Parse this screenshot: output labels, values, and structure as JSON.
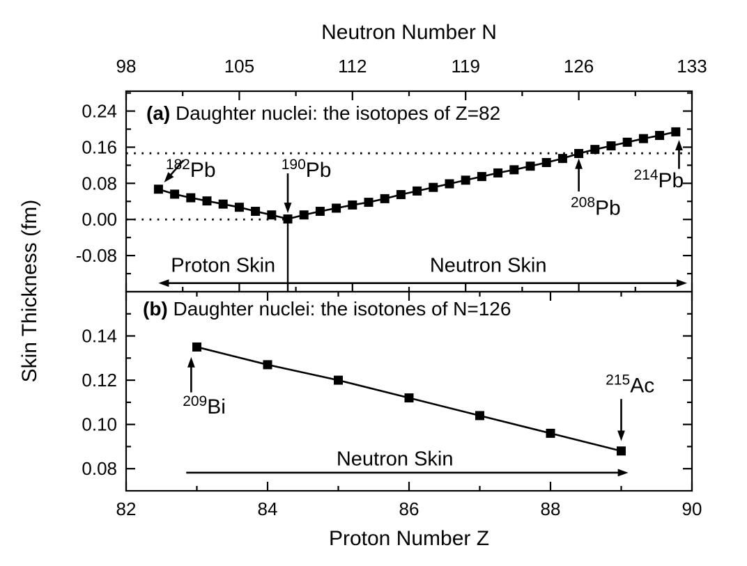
{
  "figure": {
    "background": "#ffffff",
    "foreground": "#000000",
    "y_axis_title": "Skin Thickness (fm)",
    "top_axis_title": "Neutron Number N",
    "bottom_axis_title": "Proton Number Z"
  },
  "chart_data": [
    {
      "type": "line",
      "id": "a",
      "title_label": "(a)",
      "title_text": "Daughter nuclei: the isotopes of Z=82",
      "xlabel": "Neutron Number N",
      "ylabel": "Skin Thickness (fm)",
      "x_axis": "top",
      "legend": "none",
      "grid": false,
      "marker": "square",
      "xlim": [
        98,
        133
      ],
      "ylim": [
        -0.16,
        0.284
      ],
      "xticks": [
        98,
        105,
        112,
        119,
        126,
        133
      ],
      "xminor": [
        101.5,
        108.5,
        115.5,
        122.5,
        129.5
      ],
      "yticks": [
        -0.08,
        0.0,
        0.08,
        0.16,
        0.24
      ],
      "yminor": [
        -0.12,
        -0.04,
        0.04,
        0.12,
        0.2,
        0.28
      ],
      "x": [
        100,
        101,
        102,
        103,
        104,
        105,
        106,
        107,
        108,
        109,
        110,
        111,
        112,
        113,
        114,
        115,
        116,
        117,
        118,
        119,
        120,
        121,
        122,
        123,
        124,
        125,
        126,
        127,
        128,
        129,
        130,
        131,
        132
      ],
      "y": [
        0.067,
        0.056,
        0.048,
        0.041,
        0.034,
        0.027,
        0.018,
        0.01,
        0.001,
        0.01,
        0.018,
        0.025,
        0.032,
        0.038,
        0.046,
        0.055,
        0.063,
        0.071,
        0.079,
        0.087,
        0.095,
        0.103,
        0.11,
        0.118,
        0.126,
        0.135,
        0.146,
        0.155,
        0.163,
        0.171,
        0.179,
        0.186,
        0.194
      ],
      "annotations": [
        {
          "kind": "dotline",
          "x1": 98,
          "y1": 0.1465,
          "x2": 133,
          "y2": 0.1465
        },
        {
          "kind": "dotline",
          "x1": 98,
          "y1": 0.0,
          "x2": 108,
          "y2": 0.0
        },
        {
          "kind": "line",
          "x1": 108,
          "y1": 0.0,
          "x2": 108,
          "y2": -0.16
        },
        {
          "kind": "arrow",
          "x1": 108,
          "y1": 0.102,
          "x2": 108,
          "y2": 0.014
        },
        {
          "kind": "dblarrow",
          "x1": 100,
          "y1": -0.141,
          "x2": 132.7,
          "y2": -0.141
        },
        {
          "kind": "arrow",
          "x1": 101.55,
          "y1": 0.131,
          "x2": 100.35,
          "y2": 0.082
        },
        {
          "kind": "arrow",
          "x1": 126,
          "y1": 0.062,
          "x2": 126,
          "y2": 0.135
        },
        {
          "kind": "arrow",
          "x1": 132.2,
          "y1": 0.112,
          "x2": 132.2,
          "y2": 0.176
        },
        {
          "kind": "isolabel",
          "sup": "182",
          "text": "Pb",
          "x": 100.45,
          "y": 0.094
        },
        {
          "kind": "isolabel",
          "sup": "190",
          "text": "Pb",
          "x": 107.6,
          "y": 0.094
        },
        {
          "kind": "isolabel",
          "sup": "208",
          "text": "Pb",
          "x": 125.5,
          "y": 0.01
        },
        {
          "kind": "isolabel",
          "sup": "214",
          "text": "Pb",
          "x": 129.4,
          "y": 0.071
        },
        {
          "kind": "text",
          "text": "Proton Skin",
          "x": 104.0,
          "y": -0.116
        },
        {
          "kind": "text",
          "text": "Neutron Skin",
          "x": 120.4,
          "y": -0.116
        }
      ]
    },
    {
      "type": "line",
      "id": "b",
      "title_label": "(b)",
      "title_text": "Daughter nuclei: the isotones of N=126",
      "xlabel": "Proton Number Z",
      "ylabel": "Skin Thickness (fm)",
      "x_axis": "bottom",
      "legend": "none",
      "grid": false,
      "marker": "square",
      "xlim": [
        82,
        90
      ],
      "ylim": [
        0.07,
        0.16
      ],
      "xticks": [
        82,
        84,
        86,
        88,
        90
      ],
      "xminor": [
        83,
        85,
        87,
        89
      ],
      "yticks": [
        0.08,
        0.1,
        0.12,
        0.14
      ],
      "yminor": [
        0.09,
        0.11,
        0.13,
        0.15
      ],
      "x": [
        83,
        84,
        85,
        86,
        87,
        88,
        89
      ],
      "y": [
        0.135,
        0.127,
        0.12,
        0.112,
        0.104,
        0.096,
        0.088
      ],
      "annotations": [
        {
          "kind": "arrow",
          "x1": 82.92,
          "y1": 0.1145,
          "x2": 82.92,
          "y2": 0.1305
        },
        {
          "kind": "arrow",
          "x1": 89.0,
          "y1": 0.1115,
          "x2": 89.0,
          "y2": 0.0925
        },
        {
          "kind": "arrow",
          "x1": 82.85,
          "y1": 0.0782,
          "x2": 89.1,
          "y2": 0.0782
        },
        {
          "kind": "isolabel",
          "sup": "209",
          "text": "Bi",
          "x": 82.8,
          "y": 0.105
        },
        {
          "kind": "isolabel",
          "sup": "215",
          "text": "Ac",
          "x": 88.78,
          "y": 0.1145
        },
        {
          "kind": "text",
          "text": "Neutron Skin",
          "x": 85.8,
          "y": 0.0815
        }
      ]
    }
  ]
}
